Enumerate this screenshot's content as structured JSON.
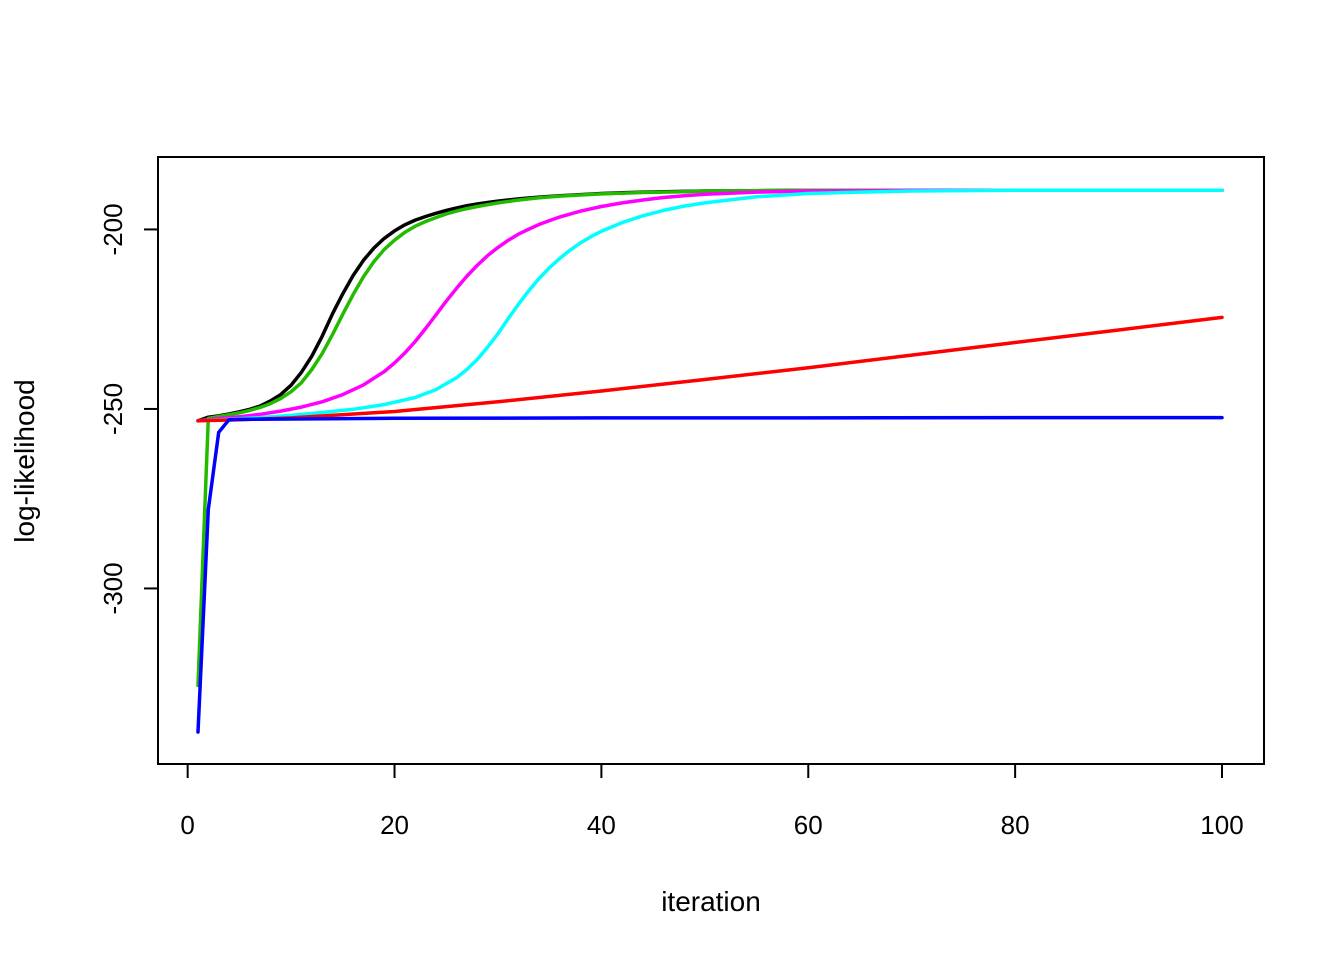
{
  "chart_data": {
    "type": "line",
    "title": "",
    "xlabel": "iteration",
    "ylabel": "log-likelihood",
    "xlim": [
      1,
      100
    ],
    "ylim": [
      -345,
      -184
    ],
    "x_ticks": [
      0,
      20,
      40,
      60,
      80,
      100
    ],
    "x_tick_labels": [
      "0",
      "20",
      "40",
      "60",
      "80",
      "100"
    ],
    "y_ticks": [
      -200,
      -250,
      -300
    ],
    "y_tick_labels": [
      "-200",
      "-250",
      "-300"
    ],
    "grid": false,
    "legend": "none",
    "series": [
      {
        "color": "#000000",
        "x": [
          1,
          2,
          3,
          4,
          5,
          6,
          7,
          8,
          9,
          10,
          11,
          12,
          13,
          14,
          15,
          16,
          17,
          18,
          19,
          20,
          21,
          22,
          23,
          24,
          25,
          26,
          27,
          28,
          29,
          30,
          32,
          34,
          36,
          38,
          40,
          42,
          44,
          46,
          48,
          50,
          55,
          60,
          65,
          70,
          80,
          90,
          100
        ],
        "values": [
          -253.3,
          -252.3,
          -251.9,
          -251.4,
          -250.8,
          -250.1,
          -249.2,
          -247.8,
          -246.0,
          -243.4,
          -239.8,
          -235.3,
          -229.8,
          -223.5,
          -217.9,
          -212.8,
          -208.6,
          -205.2,
          -202.5,
          -200.4,
          -198.7,
          -197.4,
          -196.4,
          -195.5,
          -194.7,
          -194.0,
          -193.4,
          -192.9,
          -192.5,
          -192.1,
          -191.5,
          -191.0,
          -190.6,
          -190.3,
          -190.0,
          -189.8,
          -189.6,
          -189.5,
          -189.4,
          -189.3,
          -189.2,
          -189.1,
          -189.1,
          -189.1,
          -189.1,
          -189.1,
          -189.1
        ]
      },
      {
        "color": "#22bb00",
        "x": [
          1,
          2,
          3,
          4,
          5,
          6,
          7,
          8,
          9,
          10,
          11,
          12,
          13,
          14,
          15,
          16,
          17,
          18,
          19,
          20,
          21,
          22,
          23,
          24,
          25,
          26,
          27,
          28,
          29,
          30,
          32,
          34,
          36,
          38,
          40,
          42,
          44,
          46,
          48,
          50,
          55,
          60,
          65,
          70,
          80,
          90,
          100
        ],
        "values": [
          -327.0,
          -252.6,
          -252.1,
          -251.6,
          -251.1,
          -250.4,
          -249.6,
          -248.5,
          -247.1,
          -245.2,
          -242.7,
          -239.0,
          -234.6,
          -229.3,
          -223.6,
          -218.1,
          -213.2,
          -209.0,
          -205.6,
          -203.0,
          -200.8,
          -199.1,
          -197.8,
          -196.7,
          -195.7,
          -194.9,
          -194.2,
          -193.6,
          -193.1,
          -192.6,
          -191.8,
          -191.2,
          -190.7,
          -190.4,
          -190.1,
          -189.9,
          -189.7,
          -189.6,
          -189.5,
          -189.3,
          -189.2,
          -189.1,
          -189.1,
          -189.1,
          -189.1,
          -189.1,
          -189.1
        ]
      },
      {
        "color": "#ff00ff",
        "x": [
          1,
          3,
          5,
          7,
          9,
          11,
          13,
          15,
          17,
          19,
          20,
          21,
          22,
          23,
          24,
          25,
          26,
          27,
          28,
          29,
          30,
          31,
          32,
          33,
          34,
          35,
          36,
          38,
          40,
          42,
          44,
          46,
          48,
          50,
          55,
          60,
          65,
          70,
          80,
          90,
          100
        ],
        "values": [
          -253.3,
          -252.7,
          -252.2,
          -251.5,
          -250.6,
          -249.5,
          -248.0,
          -246.0,
          -243.3,
          -239.6,
          -237.2,
          -234.4,
          -231.2,
          -227.6,
          -223.8,
          -220.0,
          -216.4,
          -213.0,
          -210.0,
          -207.3,
          -205.0,
          -203.0,
          -201.3,
          -199.9,
          -198.6,
          -197.5,
          -196.5,
          -194.9,
          -193.6,
          -192.6,
          -191.8,
          -191.1,
          -190.6,
          -190.2,
          -189.6,
          -189.3,
          -189.2,
          -189.1,
          -189.1,
          -189.1,
          -189.1
        ]
      },
      {
        "color": "#00ffff",
        "x": [
          1,
          4,
          7,
          10,
          13,
          16,
          19,
          22,
          24,
          26,
          27,
          28,
          29,
          30,
          31,
          32,
          33,
          34,
          35,
          36,
          37,
          38,
          39,
          40,
          42,
          44,
          46,
          48,
          50,
          55,
          60,
          65,
          70,
          80,
          90,
          100
        ],
        "values": [
          -253.3,
          -252.9,
          -252.4,
          -251.8,
          -251.0,
          -250.1,
          -248.8,
          -246.8,
          -244.6,
          -241.3,
          -239.0,
          -236.2,
          -232.8,
          -229.0,
          -224.8,
          -220.8,
          -217.0,
          -213.6,
          -210.6,
          -208.0,
          -205.7,
          -203.7,
          -202.0,
          -200.5,
          -198.1,
          -196.2,
          -194.7,
          -193.5,
          -192.6,
          -190.9,
          -190.0,
          -189.6,
          -189.3,
          -189.1,
          -189.1,
          -189.1
        ]
      },
      {
        "color": "#ff0000",
        "x": [
          1,
          5,
          10,
          20,
          30,
          40,
          50,
          60,
          70,
          80,
          90,
          100
        ],
        "values": [
          -253.3,
          -253.0,
          -252.5,
          -250.7,
          -248.0,
          -245.0,
          -241.8,
          -238.5,
          -235.0,
          -231.5,
          -228.0,
          -224.5
        ]
      },
      {
        "color": "#0000ff",
        "x": [
          1,
          2,
          3,
          4,
          5,
          10,
          20,
          40,
          60,
          80,
          100
        ],
        "values": [
          -340.0,
          -278.0,
          -256.5,
          -253.0,
          -252.9,
          -252.8,
          -252.6,
          -252.5,
          -252.5,
          -252.4,
          -252.4
        ]
      }
    ]
  }
}
